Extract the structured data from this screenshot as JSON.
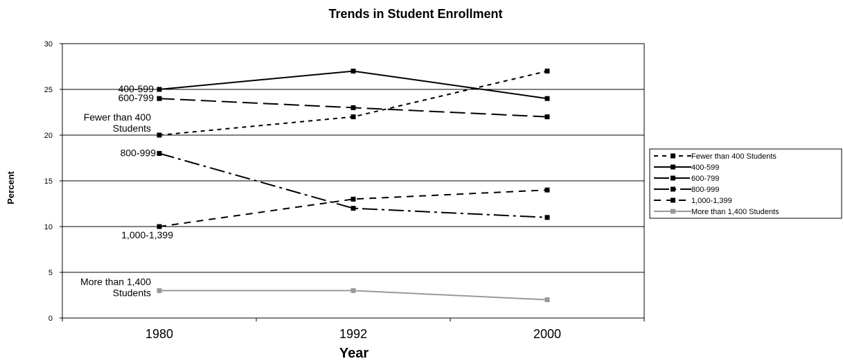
{
  "chart_data": {
    "type": "line",
    "title": "Trends in Student Enrollment",
    "xlabel": "Year",
    "ylabel": "Percent",
    "categories": [
      "1980",
      "1992",
      "2000"
    ],
    "ylim": [
      0,
      30
    ],
    "yticks": [
      0,
      5,
      10,
      15,
      20,
      25,
      30
    ],
    "grid": "horizontal",
    "legend_position": "right",
    "series": [
      {
        "name": "Fewer than 400 Students",
        "values": [
          20,
          22,
          27
        ],
        "color": "#000000",
        "dash": "6,6"
      },
      {
        "name": "400-599",
        "values": [
          25,
          27,
          24
        ],
        "color": "#000000",
        "dash": ""
      },
      {
        "name": "600-799",
        "values": [
          24,
          23,
          22
        ],
        "color": "#000000",
        "dash": "22,8"
      },
      {
        "name": "800-999",
        "values": [
          18,
          12,
          11
        ],
        "color": "#000000",
        "dash": "22,6,4,6"
      },
      {
        "name": "1,000-1,399",
        "values": [
          10,
          13,
          14
        ],
        "color": "#000000",
        "dash": "10,8"
      },
      {
        "name": "More than 1,400 Students",
        "values": [
          3,
          3,
          2
        ],
        "color": "#999999",
        "dash": ""
      }
    ],
    "annotations": [
      {
        "series": "400-599",
        "lines": [
          "400-599"
        ]
      },
      {
        "series": "600-799",
        "lines": [
          "600-799"
        ]
      },
      {
        "series": "Fewer than 400 Students",
        "lines": [
          "Fewer than 400",
          "Students"
        ]
      },
      {
        "series": "800-999",
        "lines": [
          "800-999"
        ]
      },
      {
        "series": "1,000-1,399",
        "lines": [
          "1,000-1,399"
        ]
      },
      {
        "series": "More than 1,400 Students",
        "lines": [
          "More than 1,400",
          "Students"
        ]
      }
    ]
  }
}
